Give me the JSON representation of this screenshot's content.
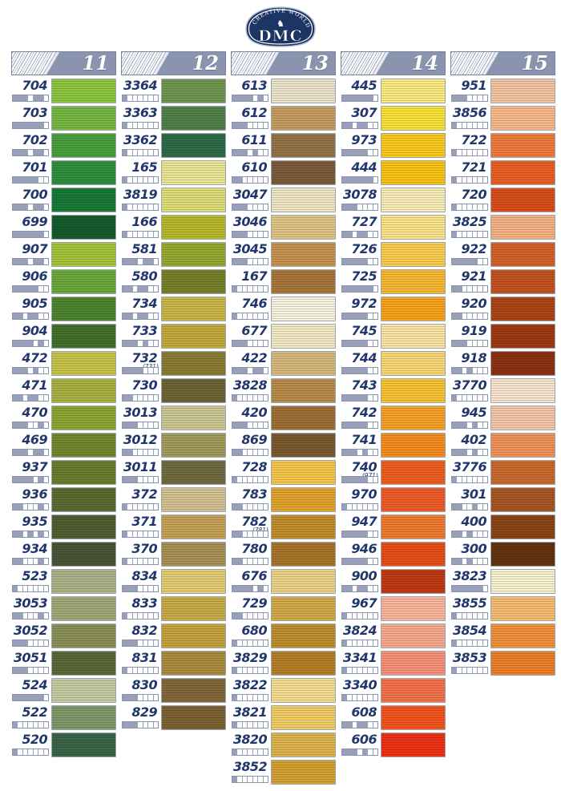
{
  "logo": {
    "brand": "DMC",
    "tagline": "CREATIVE WORLD",
    "emblem": "horse-crest",
    "bg": "#1d3565"
  },
  "palette": {
    "header_bg": "#8a94ae",
    "number_color": "#21376b",
    "barcode_fill": "#97a0b8",
    "swatch_border": "#9aa3ae"
  },
  "columns": [
    {
      "page": "11",
      "rows": [
        {
          "num": "704",
          "color": "#8dc63f",
          "bar": "1110110"
        },
        {
          "num": "703",
          "color": "#76b843",
          "bar": "1111110"
        },
        {
          "num": "702",
          "color": "#4aa03c",
          "bar": "1110110"
        },
        {
          "num": "701",
          "color": "#2f8f3c",
          "bar": "1111100"
        },
        {
          "num": "700",
          "color": "#1a7a38",
          "bar": "1110110"
        },
        {
          "num": "699",
          "color": "#175c2d",
          "bar": "1111110"
        },
        {
          "num": "907",
          "color": "#a4c43a",
          "bar": "1110110"
        },
        {
          "num": "906",
          "color": "#6aaa3a",
          "bar": "1111100"
        },
        {
          "num": "905",
          "color": "#4e8530",
          "bar": "1101100"
        },
        {
          "num": "904",
          "color": "#43702a",
          "bar": "1111010"
        },
        {
          "num": "472",
          "color": "#c8c34a",
          "bar": "1110100"
        },
        {
          "num": "471",
          "color": "#a9b241",
          "bar": "1101100"
        },
        {
          "num": "470",
          "color": "#8ca633",
          "bar": "1110010"
        },
        {
          "num": "469",
          "color": "#74882f",
          "bar": "1110110"
        },
        {
          "num": "937",
          "color": "#6b7c2e",
          "bar": "1111010"
        },
        {
          "num": "936",
          "color": "#5c6b31",
          "bar": "1100010"
        },
        {
          "num": "935",
          "color": "#525f33",
          "bar": "1101010"
        },
        {
          "num": "934",
          "color": "#4c5438",
          "bar": "1100010"
        },
        {
          "num": "523",
          "color": "#adb289",
          "bar": "1000000"
        },
        {
          "num": "3053",
          "color": "#a2a878",
          "bar": "1100010"
        },
        {
          "num": "3052",
          "color": "#8b9158",
          "bar": "1110000"
        },
        {
          "num": "3051",
          "color": "#5d6839",
          "bar": "1110000"
        },
        {
          "num": "524",
          "color": "#c6cba2",
          "bar": "1111110"
        },
        {
          "num": "522",
          "color": "#7f996b",
          "bar": "1000000"
        },
        {
          "num": "520",
          "color": "#3a6549",
          "bar": "1000000"
        }
      ]
    },
    {
      "page": "12",
      "rows": [
        {
          "num": "3364",
          "color": "#70954f",
          "bar": "1000000"
        },
        {
          "num": "3363",
          "color": "#52814a",
          "bar": "1000000"
        },
        {
          "num": "3362",
          "color": "#2f6a49",
          "bar": "1000000"
        },
        {
          "num": "165",
          "color": "#e9e795",
          "bar": "1000000"
        },
        {
          "num": "3819",
          "color": "#dede7a",
          "bar": "1000000"
        },
        {
          "num": "166",
          "color": "#b8ba2e",
          "bar": "1000000"
        },
        {
          "num": "581",
          "color": "#97a930",
          "bar": "1110110"
        },
        {
          "num": "580",
          "color": "#78802b",
          "bar": "1101100"
        },
        {
          "num": "734",
          "color": "#c9b849",
          "bar": "1101100"
        },
        {
          "num": "733",
          "color": "#c3aa3c",
          "bar": "1110100"
        },
        {
          "num": "732",
          "alt": "(731)",
          "color": "#8a7d33",
          "bar": "1111000"
        },
        {
          "num": "730",
          "color": "#6d6536",
          "bar": "1100000"
        },
        {
          "num": "3013",
          "color": "#ccc795",
          "bar": "1110000"
        },
        {
          "num": "3012",
          "color": "#a29c5c",
          "bar": "1100000"
        },
        {
          "num": "3011",
          "color": "#716b41",
          "bar": "1110000"
        },
        {
          "num": "372",
          "color": "#d3c193",
          "bar": "1000000"
        },
        {
          "num": "371",
          "color": "#c4a258",
          "bar": "1000000"
        },
        {
          "num": "370",
          "color": "#a99055",
          "bar": "1000000"
        },
        {
          "num": "834",
          "color": "#e3cc74",
          "bar": "1110000"
        },
        {
          "num": "833",
          "color": "#c9ac4a",
          "bar": "1000000"
        },
        {
          "num": "832",
          "color": "#c4a23c",
          "bar": "1110000"
        },
        {
          "num": "831",
          "color": "#ab8c3e",
          "bar": "1000000"
        },
        {
          "num": "830",
          "color": "#83683a",
          "bar": "1110000"
        },
        {
          "num": "829",
          "color": "#7d6334",
          "bar": "1110000"
        }
      ]
    },
    {
      "page": "13",
      "rows": [
        {
          "num": "613",
          "color": "#ece4ca",
          "bar": "1111010"
        },
        {
          "num": "612",
          "color": "#c69c60",
          "bar": "1110000"
        },
        {
          "num": "611",
          "color": "#967449",
          "bar": "1110100"
        },
        {
          "num": "610",
          "color": "#7c5c3c",
          "bar": "1100000"
        },
        {
          "num": "3047",
          "color": "#efe6c4",
          "bar": "1110000"
        },
        {
          "num": "3046",
          "color": "#e0c584",
          "bar": "1110000"
        },
        {
          "num": "3045",
          "color": "#c79350",
          "bar": "1110000"
        },
        {
          "num": "167",
          "color": "#a9763c",
          "bar": "1000000"
        },
        {
          "num": "746",
          "color": "#f7f2de",
          "bar": "1000000"
        },
        {
          "num": "677",
          "color": "#f2e9c4",
          "bar": "1110000"
        },
        {
          "num": "422",
          "color": "#d6b87c",
          "bar": "1110110"
        },
        {
          "num": "3828",
          "color": "#b98c4c",
          "bar": "1000000"
        },
        {
          "num": "420",
          "color": "#a06f34",
          "bar": "1110000"
        },
        {
          "num": "869",
          "color": "#7c5a30",
          "bar": "1100000"
        },
        {
          "num": "728",
          "color": "#f6c64c",
          "bar": "1000000"
        },
        {
          "num": "783",
          "color": "#e2a42e",
          "bar": "1100000"
        },
        {
          "num": "782",
          "alt": "(781)",
          "color": "#c28d2c",
          "bar": "1100000"
        },
        {
          "num": "780",
          "color": "#a8752a",
          "bar": "1100000"
        },
        {
          "num": "676",
          "color": "#ebd488",
          "bar": "1111010"
        },
        {
          "num": "729",
          "color": "#d4aa48",
          "bar": "1100000"
        },
        {
          "num": "680",
          "color": "#bf8e2d",
          "bar": "1000000"
        },
        {
          "num": "3829",
          "color": "#b58028",
          "bar": "1000000"
        },
        {
          "num": "3822",
          "color": "#f4dd90",
          "bar": "1000000"
        },
        {
          "num": "3821",
          "color": "#f1cd66",
          "bar": "1000000"
        },
        {
          "num": "3820",
          "color": "#ddb44c",
          "bar": "1000000"
        },
        {
          "num": "3852",
          "color": "#d3a233",
          "bar": "1000000"
        }
      ]
    },
    {
      "page": "14",
      "rows": [
        {
          "num": "445",
          "color": "#fbec81",
          "bar": "1111110"
        },
        {
          "num": "307",
          "color": "#fbe23a",
          "bar": "1101100"
        },
        {
          "num": "973",
          "color": "#fbca1f",
          "bar": "1111100"
        },
        {
          "num": "444",
          "color": "#fbc312",
          "bar": "1111110"
        },
        {
          "num": "3078",
          "color": "#f8edb6",
          "bar": "1110000"
        },
        {
          "num": "727",
          "color": "#f9e489",
          "bar": "1101100"
        },
        {
          "num": "726",
          "color": "#f9ce50",
          "bar": "1111100"
        },
        {
          "num": "725",
          "color": "#f7b833",
          "bar": "1111110"
        },
        {
          "num": "972",
          "color": "#f7a41c",
          "bar": "1111100"
        },
        {
          "num": "745",
          "color": "#fae5a6",
          "bar": "1111100"
        },
        {
          "num": "744",
          "color": "#f9d977",
          "bar": "1111100"
        },
        {
          "num": "743",
          "color": "#f8c434",
          "bar": "1111100"
        },
        {
          "num": "742",
          "color": "#f7a228",
          "bar": "1111100"
        },
        {
          "num": "741",
          "color": "#f68d1f",
          "bar": "1110100"
        },
        {
          "num": "740",
          "alt": "(971)",
          "color": "#ef5f1f",
          "bar": "1111100"
        },
        {
          "num": "970",
          "color": "#ee5c29",
          "bar": "1000000"
        },
        {
          "num": "947",
          "color": "#f07c31",
          "bar": "1111100"
        },
        {
          "num": "946",
          "color": "#e84f1b",
          "bar": "1111100"
        },
        {
          "num": "900",
          "color": "#bf3b13",
          "bar": "1101100"
        },
        {
          "num": "967",
          "color": "#f8b69c",
          "bar": "1000000"
        },
        {
          "num": "3824",
          "color": "#f8aa8f",
          "bar": "1000000"
        },
        {
          "num": "3341",
          "color": "#f69378",
          "bar": "1000000"
        },
        {
          "num": "3340",
          "color": "#f4734d",
          "bar": "1000000"
        },
        {
          "num": "608",
          "color": "#f4541d",
          "bar": "1101100"
        },
        {
          "num": "606",
          "color": "#ef3116",
          "bar": "1110100"
        }
      ]
    },
    {
      "page": "15",
      "rows": [
        {
          "num": "951",
          "color": "#f4c5a3",
          "bar": "1110000"
        },
        {
          "num": "3856",
          "color": "#f8ba89",
          "bar": "1000000"
        },
        {
          "num": "722",
          "color": "#f07b3d",
          "bar": "1000000"
        },
        {
          "num": "721",
          "color": "#e95f25",
          "bar": "1000000"
        },
        {
          "num": "720",
          "color": "#d94f1b",
          "bar": "1000000"
        },
        {
          "num": "3825",
          "color": "#f5b284",
          "bar": "1000000"
        },
        {
          "num": "922",
          "color": "#d4632b",
          "bar": "1111100"
        },
        {
          "num": "921",
          "color": "#c2551f",
          "bar": "1100000"
        },
        {
          "num": "920",
          "color": "#ab4618",
          "bar": "1100000"
        },
        {
          "num": "919",
          "color": "#9e3b15",
          "bar": "1110000"
        },
        {
          "num": "918",
          "color": "#8c3313",
          "bar": "1101000"
        },
        {
          "num": "3770",
          "color": "#f8e5cf",
          "bar": "1000000"
        },
        {
          "num": "945",
          "color": "#f6c6a9",
          "bar": "1110100"
        },
        {
          "num": "402",
          "color": "#f0925b",
          "bar": "1110100"
        },
        {
          "num": "3776",
          "color": "#c96b2f",
          "bar": "1000000"
        },
        {
          "num": "301",
          "color": "#a85626",
          "bar": "1100100"
        },
        {
          "num": "400",
          "color": "#8a4617",
          "bar": "1101000"
        },
        {
          "num": "300",
          "color": "#643310",
          "bar": "1101000"
        },
        {
          "num": "3823",
          "color": "#f7f1cf",
          "bar": "1111110"
        },
        {
          "num": "3855",
          "color": "#f7bd73",
          "bar": "1000000"
        },
        {
          "num": "3854",
          "color": "#f2923d",
          "bar": "1000000"
        },
        {
          "num": "3853",
          "color": "#ee7f2b",
          "bar": "1000000"
        }
      ]
    }
  ]
}
